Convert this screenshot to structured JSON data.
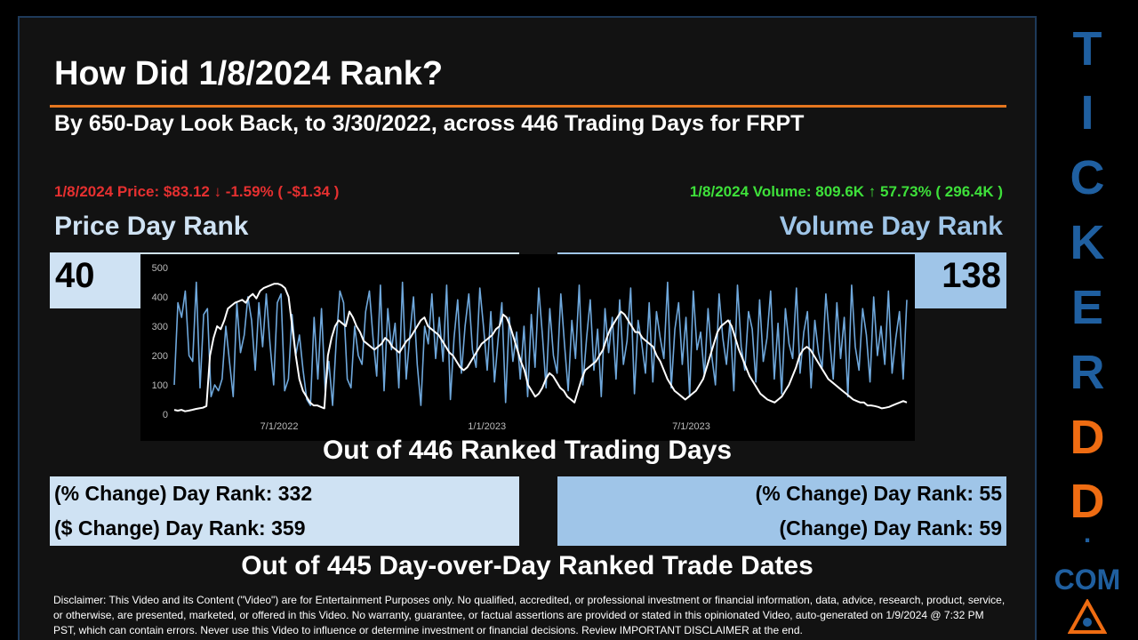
{
  "header": {
    "title": "How Did 1/8/2024 Rank?",
    "subtitle": "By 650-Day Look Back, to 3/30/2022, across 446 Trading Days for FRPT"
  },
  "price": {
    "summary": "1/8/2024 Price: $83.12 ↓ -1.59% ( -$1.34 )",
    "rank_title": "Price Day Rank",
    "rank_value": "40",
    "color": "#e53030"
  },
  "volume": {
    "summary": "1/8/2024 Volume: 809.6K ↑ 57.73% ( 296.4K )",
    "rank_title": "Volume Day Rank",
    "rank_value": "138",
    "color": "#3ee03a"
  },
  "ranked_days_caption": "Out of 446 Ranked Trading Days",
  "change_ranks": {
    "left": [
      "(% Change) Day Rank: 332",
      "($ Change) Day Rank: 359"
    ],
    "right": [
      "(% Change) Day Rank: 55",
      "(Change) Day Rank: 59"
    ]
  },
  "dod_caption": "Out of 445 Day-over-Day Ranked Trade Dates",
  "disclaimer": "Disclaimer: This Video and its Content (\"Video\") are for Entertainment Purposes only. No qualified, accredited, or professional investment or financial information, data, advice, research, product, service, or otherwise, are presented, marketed, or offered in this Video. No warranty, guarantee, or factual assertions are provided or stated in this opinionated Video, auto-generated on 1/9/2024 @ 7:32 PM PST, which can contain errors. Never use this Video to influence or determine investment or financial decisions. Review IMPORTANT DISCLAIMER at the end.",
  "brand": {
    "letters": [
      "T",
      "I",
      "C",
      "K",
      "E",
      "R",
      "D",
      "D",
      "."
    ],
    "suffix": "COM",
    "colors": {
      "primary": "#1f5fa0",
      "accent": "#ef6c12"
    }
  },
  "chart_data": {
    "type": "line",
    "x_start": "3/30/2022",
    "x_end": "1/8/2024",
    "x_ticks": [
      "7/1/2022",
      "1/1/2023",
      "7/1/2023"
    ],
    "y_ticks": [
      "0",
      "100",
      "200",
      "300",
      "400",
      "500"
    ],
    "ylim": [
      0,
      500
    ],
    "series": [
      {
        "color": "#ffffff",
        "values": [
          15,
          12,
          15,
          10,
          12,
          15,
          18,
          20,
          22,
          28,
          200,
          260,
          300,
          290,
          320,
          360,
          370,
          380,
          385,
          390,
          380,
          400,
          410,
          395,
          420,
          430,
          435,
          440,
          445,
          445,
          440,
          430,
          400,
          300,
          200,
          120,
          80,
          60,
          40,
          30,
          30,
          25,
          20,
          200,
          260,
          300,
          320,
          310,
          300,
          350,
          330,
          300,
          280,
          250,
          240,
          230,
          220,
          230,
          240,
          260,
          250,
          230,
          220,
          210,
          230,
          250,
          260,
          280,
          300,
          320,
          330,
          300,
          290,
          280,
          270,
          250,
          230,
          210,
          200,
          180,
          160,
          150,
          160,
          180,
          200,
          220,
          240,
          250,
          260,
          270,
          290,
          300,
          340,
          330,
          300,
          260,
          220,
          180,
          150,
          100,
          80,
          60,
          70,
          90,
          120,
          140,
          130,
          110,
          90,
          80,
          60,
          50,
          40,
          80,
          120,
          150,
          160,
          170,
          180,
          200,
          220,
          260,
          290,
          310,
          330,
          350,
          340,
          320,
          300,
          280,
          280,
          260,
          250,
          240,
          230,
          200,
          180,
          150,
          120,
          100,
          80,
          70,
          60,
          50,
          60,
          70,
          80,
          100,
          120,
          160,
          200,
          240,
          280,
          300,
          310,
          320,
          300,
          260,
          220,
          190,
          160,
          130,
          110,
          90,
          70,
          60,
          50,
          45,
          40,
          50,
          60,
          80,
          100,
          130,
          160,
          200,
          220,
          230,
          220,
          200,
          180,
          160,
          140,
          120,
          110,
          100,
          90,
          80,
          70,
          60,
          50,
          45,
          40,
          40,
          30,
          30,
          28,
          25,
          20,
          22,
          25,
          30,
          35,
          40,
          45,
          40
        ]
      },
      {
        "color": "#6fa8dc",
        "values": [
          100,
          380,
          330,
          420,
          200,
          180,
          450,
          90,
          340,
          360,
          60,
          100,
          80,
          120,
          300,
          180,
          60,
          380,
          210,
          270,
          400,
          320,
          150,
          380,
          230,
          410,
          240,
          100,
          380,
          410,
          80,
          120,
          340,
          200,
          270,
          150,
          50,
          30,
          330,
          120,
          360,
          80,
          180,
          30,
          250,
          420,
          380,
          120,
          90,
          300,
          200,
          170,
          350,
          420,
          260,
          130,
          440,
          80,
          360,
          220,
          310,
          90,
          450,
          120,
          270,
          400,
          170,
          30,
          300,
          240,
          410,
          190,
          330,
          180,
          440,
          50,
          260,
          390,
          140,
          300,
          410,
          220,
          160,
          430,
          300,
          150,
          350,
          110,
          260,
          380,
          40,
          330,
          180,
          280,
          120,
          300,
          60,
          340,
          160,
          430,
          270,
          90,
          360,
          200,
          140,
          410,
          240,
          80,
          320,
          190,
          440,
          100,
          260,
          390,
          150,
          290,
          60,
          360,
          210,
          330,
          120,
          390,
          170,
          250,
          430,
          70,
          320,
          240,
          140,
          380,
          110,
          350,
          260,
          190,
          450,
          90,
          290,
          380,
          170,
          330,
          60,
          420,
          220,
          280,
          130,
          360,
          200,
          100,
          410,
          260,
          170,
          320,
          80,
          440,
          230,
          150,
          350,
          290,
          110,
          390,
          180,
          260,
          420,
          120,
          310,
          70,
          360,
          240,
          190,
          430,
          140,
          280,
          350,
          90,
          320,
          210,
          160,
          410,
          260,
          120,
          380,
          190,
          330,
          60,
          440,
          230,
          150,
          360,
          270,
          110,
          400,
          200,
          300,
          170,
          420,
          140,
          260,
          350,
          120,
          390
        ]
      }
    ]
  }
}
